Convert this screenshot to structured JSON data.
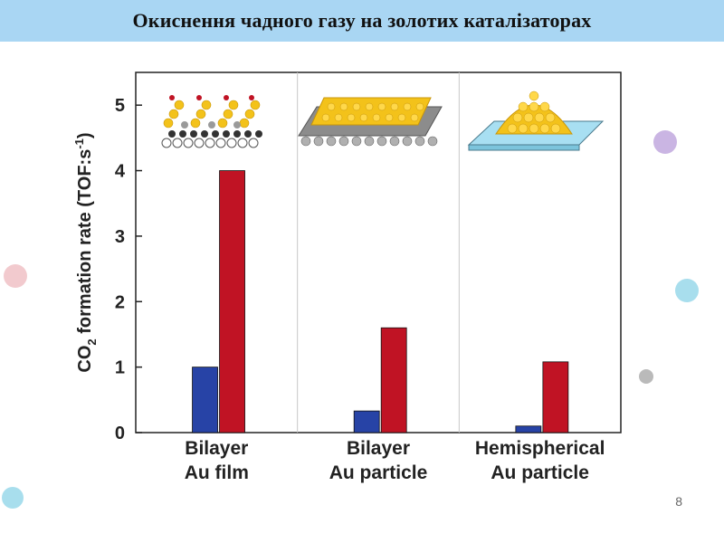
{
  "slide": {
    "title": "Окиснення чадного газу на золотих каталізаторах",
    "page_number": "8"
  },
  "colors": {
    "title_bar": "#a9d6f3",
    "series_blue": "#2743a6",
    "series_red": "#c01324",
    "surface_blue": "#a8dff2",
    "gold": "#f3c21a"
  },
  "icons": [
    "bilayer-au-film-structure-icon",
    "bilayer-au-particle-structure-icon",
    "hemispherical-au-particle-structure-icon"
  ],
  "chart_data": {
    "type": "bar",
    "ylabel_main": "CO",
    "ylabel_sub": "2",
    "ylabel_rest": " formation rate (TOF:s",
    "ylabel_sup": "-1",
    "ylabel_close": ")",
    "ylim": [
      0,
      5.5
    ],
    "yticks": [
      0,
      1,
      2,
      3,
      4,
      5
    ],
    "grid": false,
    "category_lines": [
      [
        "Bilayer",
        "Au film"
      ],
      [
        "Bilayer",
        "Au particle"
      ],
      [
        "Hemispherical",
        "Au particle"
      ]
    ],
    "series": [
      {
        "color": "#2743a6",
        "values": [
          1.0,
          0.33,
          0.1
        ]
      },
      {
        "color": "#c01324",
        "values": [
          4.0,
          1.6,
          1.08
        ]
      }
    ]
  }
}
